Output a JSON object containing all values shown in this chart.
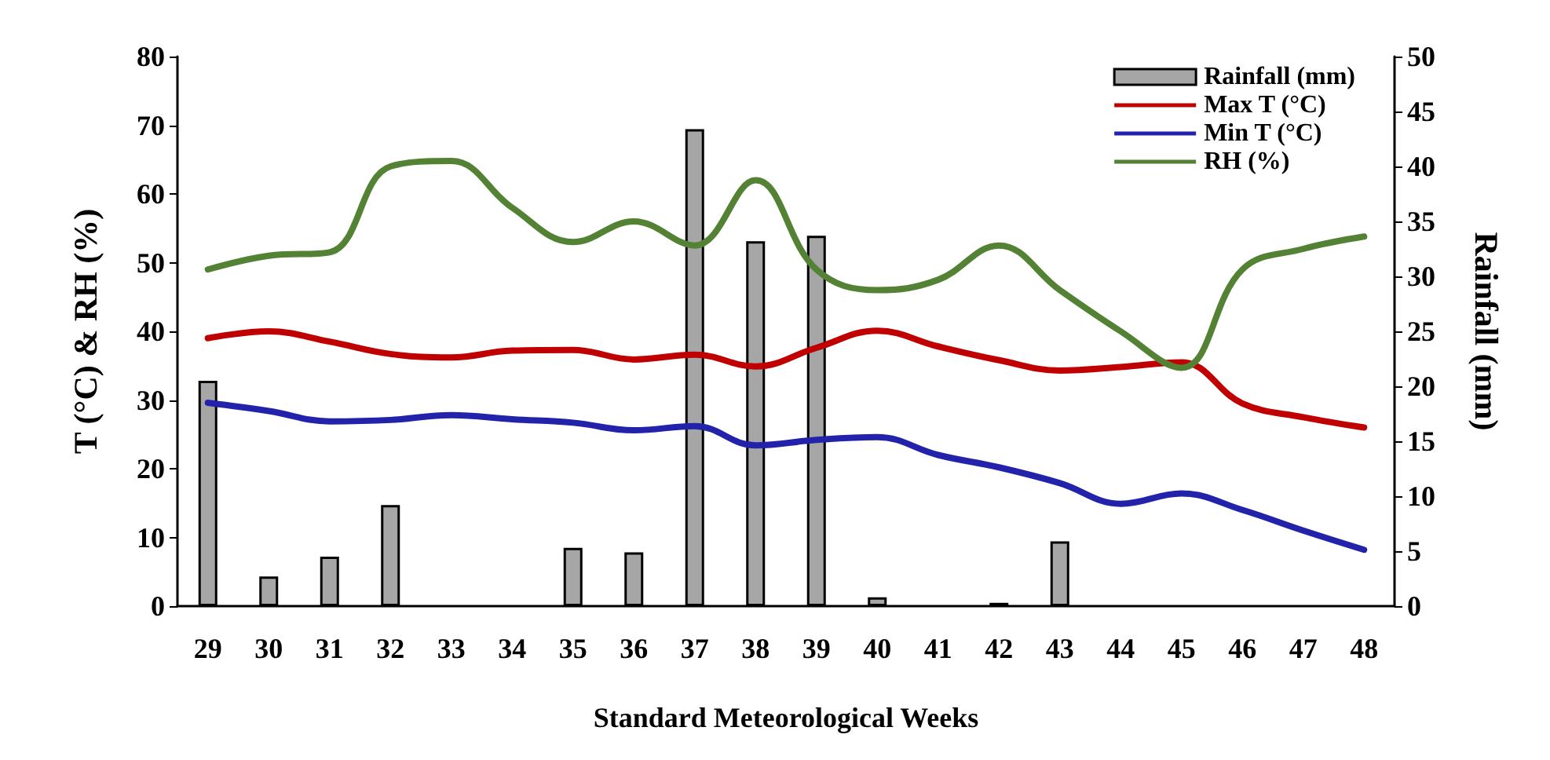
{
  "chart_data": {
    "type": "line",
    "xlabel": "Standard Meteorological Weeks",
    "ylabel": "T (°C) & RH (%)",
    "y2label": "Rainfall (mm)",
    "categories": [
      "29",
      "30",
      "31",
      "32",
      "33",
      "34",
      "35",
      "36",
      "37",
      "38",
      "39",
      "40",
      "41",
      "42",
      "43",
      "44",
      "45",
      "46",
      "47",
      "48"
    ],
    "series": [
      {
        "name": "Rainfall (mm)",
        "type": "bar",
        "axis": "y2",
        "color": "#a6a6a6",
        "values": [
          20.5,
          2.7,
          4.5,
          9.2,
          0,
          0,
          5.3,
          4.9,
          43.4,
          33.2,
          33.7,
          0.8,
          0,
          0.3,
          5.9,
          0,
          0,
          0,
          0,
          0
        ]
      },
      {
        "name": "Max T (°C)",
        "color": "#c00000",
        "values": [
          39,
          40,
          38.5,
          36.7,
          36.2,
          37.2,
          37.3,
          35.9,
          36.6,
          34.9,
          37.6,
          40.1,
          37.8,
          35.8,
          34.3,
          34.8,
          35.5,
          29.5,
          27.5,
          26
        ]
      },
      {
        "name": "Min T (°C)",
        "color": "#2222aa",
        "values": [
          29.6,
          28.4,
          26.9,
          27.1,
          27.8,
          27.2,
          26.7,
          25.6,
          26.2,
          23.4,
          24.2,
          24.6,
          22,
          20.2,
          17.9,
          14.9,
          16.4,
          14,
          11,
          8.2
        ]
      },
      {
        "name": "RH (%)",
        "color": "#548235",
        "values": [
          49,
          51,
          51.5,
          64,
          64.8,
          58,
          53,
          56,
          52.5,
          62,
          49,
          46,
          47.5,
          52.5,
          46,
          40,
          34.7,
          49,
          52,
          53.8
        ]
      }
    ],
    "ylim": [
      0,
      80
    ],
    "yticks": [
      0,
      10,
      20,
      30,
      40,
      50,
      60,
      70,
      80
    ],
    "y2lim": [
      0,
      50
    ],
    "y2ticks": [
      0,
      5,
      10,
      15,
      20,
      25,
      30,
      35,
      40,
      45,
      50
    ],
    "legend": "top right",
    "grid": false,
    "marker": "none",
    "line_style": "solid"
  }
}
